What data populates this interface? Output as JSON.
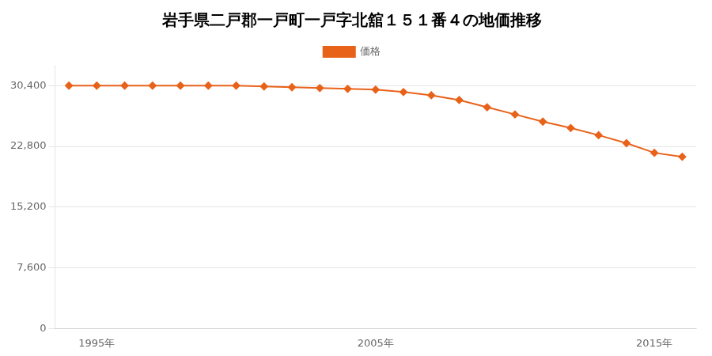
{
  "chart_data": {
    "type": "line",
    "title": "岩手県二戸郡一戸町一戸字北舘１５１番４の地価推移",
    "x": [
      1994,
      1995,
      1996,
      1997,
      1998,
      1999,
      2000,
      2001,
      2002,
      2003,
      2004,
      2005,
      2006,
      2007,
      2008,
      2009,
      2010,
      2011,
      2012,
      2013,
      2014,
      2015,
      2016
    ],
    "series": [
      {
        "name": "価格",
        "color": "#e8621a",
        "marker": "diamond",
        "values": [
          30400,
          30400,
          30400,
          30400,
          30400,
          30400,
          30400,
          30300,
          30200,
          30100,
          30000,
          29900,
          29600,
          29200,
          28600,
          27700,
          26800,
          25900,
          25100,
          24200,
          23200,
          22000,
          21500
        ]
      }
    ],
    "xlim": [
      1993.5,
      2016.5
    ],
    "xticks": [
      {
        "value": 1995,
        "label": "1995年"
      },
      {
        "value": 2005,
        "label": "2005年"
      },
      {
        "value": 2015,
        "label": "2015年"
      }
    ],
    "ylim": [
      0,
      33000
    ],
    "yticks": [
      0,
      {
        "value": 7600,
        "label": "7,600"
      },
      {
        "value": 15200,
        "label": "15,200"
      },
      {
        "value": 22800,
        "label": "22,800"
      },
      {
        "value": 30400,
        "label": "30,400"
      }
    ],
    "grid": "y",
    "legend": "top"
  }
}
